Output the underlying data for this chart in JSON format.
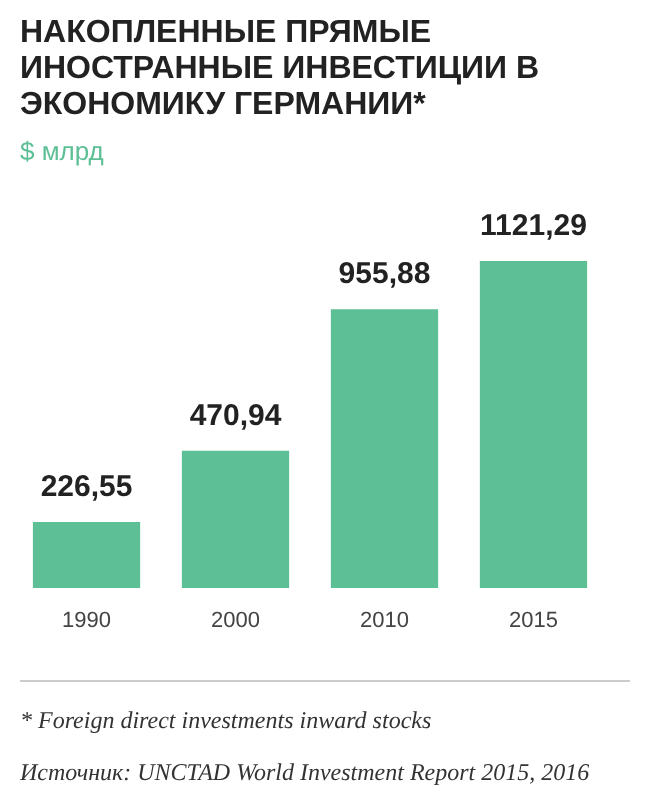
{
  "chart_data": {
    "type": "bar",
    "title": "НАКОПЛЕННЫЕ ПРЯМЫЕ ИНОСТРАННЫЕ ИНВЕСТИЦИИ В ЭКОНОМИКУ ГЕРМАНИИ*",
    "subtitle": "$ млрд",
    "categories": [
      "1990",
      "2000",
      "2010",
      "2015"
    ],
    "values": [
      226.55,
      470.94,
      955.88,
      1121.29
    ],
    "value_labels": [
      "226,55",
      "470,94",
      "955,88",
      "1121,29"
    ],
    "color": "#5cbf95",
    "annotations": [
      "* Foreign direct investments inward stocks",
      "Источник: UNCTAD World Investment Report 2015, 2016"
    ]
  }
}
